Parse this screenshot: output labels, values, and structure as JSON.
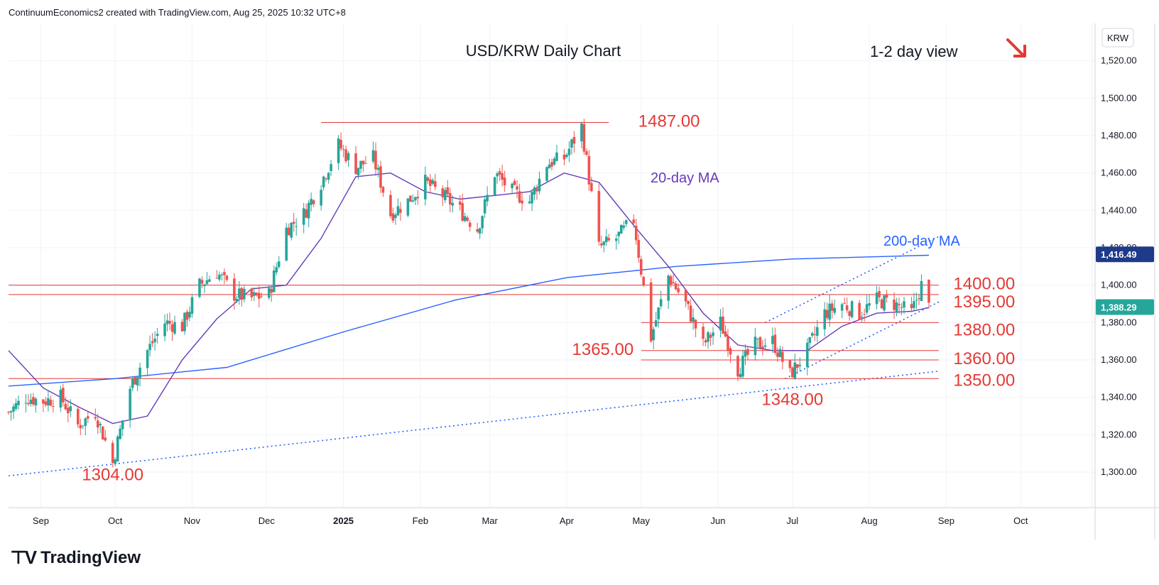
{
  "header": {
    "attribution": "ContinuumEconomics2 created with TradingView.com, Aug 25, 2025 10:32 UTC+8"
  },
  "footer": {
    "brand": "TradingView"
  },
  "colors": {
    "up": "#26a69a",
    "down": "#ef5350",
    "level": "#e53935",
    "ma20": "#673ab7",
    "ma200": "#2962ff",
    "trend": "#2962ff",
    "arrow": "#e53935"
  },
  "chart_data": {
    "type": "candlestick",
    "title": "USD/KRW Daily Chart",
    "subtitle": "1-2 day view",
    "currency": "KRW",
    "x_ticks": [
      "Sep",
      "Oct",
      "Nov",
      "Dec",
      "2025",
      "Feb",
      "Mar",
      "Apr",
      "May",
      "Jun",
      "Jul",
      "Aug",
      "Sep",
      "Oct"
    ],
    "y_ticks": [
      "1,300.00",
      "1,320.00",
      "1,340.00",
      "1,360.00",
      "1,380.00",
      "1,400.00",
      "1,420.00",
      "1,440.00",
      "1,460.00",
      "1,480.00",
      "1,500.00",
      "1,520.00"
    ],
    "ylim": [
      1281,
      1540
    ],
    "last_price": "1,388.29",
    "ma200_label_price": "1,416.49",
    "levels": [
      {
        "label": "1487.00",
        "value": 1487
      },
      {
        "label": "1400.00",
        "value": 1400
      },
      {
        "label": "1395.00",
        "value": 1395
      },
      {
        "label": "1380.00",
        "value": 1380
      },
      {
        "label": "1365.00",
        "value": 1365
      },
      {
        "label": "1360.00",
        "value": 1360
      },
      {
        "label": "1350.00",
        "value": 1350
      },
      {
        "label": "1348.00",
        "value": 1348
      },
      {
        "label": "1304.00",
        "value": 1304
      }
    ],
    "annotations": {
      "ma20": "20-day MA",
      "ma200": "200-day MA"
    },
    "path_points": [
      [
        "2024-08-19",
        1332
      ],
      [
        "2024-08-26",
        1340
      ],
      [
        "2024-09-02",
        1338
      ],
      [
        "2024-09-09",
        1340
      ],
      [
        "2024-09-16",
        1325
      ],
      [
        "2024-09-23",
        1332
      ],
      [
        "2024-09-30",
        1305
      ],
      [
        "2024-10-07",
        1345
      ],
      [
        "2024-10-14",
        1365
      ],
      [
        "2024-10-21",
        1380
      ],
      [
        "2024-10-28",
        1378
      ],
      [
        "2024-11-04",
        1400
      ],
      [
        "2024-11-11",
        1407
      ],
      [
        "2024-11-18",
        1395
      ],
      [
        "2024-11-25",
        1393
      ],
      [
        "2024-12-02",
        1395
      ],
      [
        "2024-12-09",
        1430
      ],
      [
        "2024-12-16",
        1438
      ],
      [
        "2024-12-23",
        1455
      ],
      [
        "2024-12-30",
        1475
      ],
      [
        "2025-01-06",
        1463
      ],
      [
        "2025-01-13",
        1468
      ],
      [
        "2025-01-20",
        1438
      ],
      [
        "2025-01-27",
        1445
      ],
      [
        "2025-02-03",
        1455
      ],
      [
        "2025-02-10",
        1448
      ],
      [
        "2025-02-17",
        1440
      ],
      [
        "2025-02-24",
        1430
      ],
      [
        "2025-03-03",
        1460
      ],
      [
        "2025-03-10",
        1450
      ],
      [
        "2025-03-17",
        1445
      ],
      [
        "2025-03-24",
        1465
      ],
      [
        "2025-03-31",
        1468
      ],
      [
        "2025-04-07",
        1485
      ],
      [
        "2025-04-14",
        1420
      ],
      [
        "2025-04-21",
        1425
      ],
      [
        "2025-04-28",
        1435
      ],
      [
        "2025-05-05",
        1372
      ],
      [
        "2025-05-12",
        1405
      ],
      [
        "2025-05-19",
        1390
      ],
      [
        "2025-05-26",
        1368
      ],
      [
        "2025-06-02",
        1380
      ],
      [
        "2025-06-09",
        1355
      ],
      [
        "2025-06-16",
        1368
      ],
      [
        "2025-06-23",
        1370
      ],
      [
        "2025-06-30",
        1352
      ],
      [
        "2025-07-07",
        1365
      ],
      [
        "2025-07-14",
        1385
      ],
      [
        "2025-07-21",
        1390
      ],
      [
        "2025-07-28",
        1385
      ],
      [
        "2025-08-04",
        1392
      ],
      [
        "2025-08-11",
        1390
      ],
      [
        "2025-08-18",
        1385
      ],
      [
        "2025-08-22",
        1400
      ],
      [
        "2025-08-25",
        1388
      ]
    ],
    "ma20": [
      [
        "2024-08-19",
        1365
      ],
      [
        "2024-09-02",
        1345
      ],
      [
        "2024-09-16",
        1335
      ],
      [
        "2024-09-30",
        1326
      ],
      [
        "2024-10-14",
        1330
      ],
      [
        "2024-10-28",
        1360
      ],
      [
        "2024-11-11",
        1382
      ],
      [
        "2024-11-25",
        1398
      ],
      [
        "2024-12-09",
        1400
      ],
      [
        "2024-12-23",
        1425
      ],
      [
        "2025-01-06",
        1458
      ],
      [
        "2025-01-20",
        1460
      ],
      [
        "2025-02-03",
        1450
      ],
      [
        "2025-02-17",
        1446
      ],
      [
        "2025-03-03",
        1448
      ],
      [
        "2025-03-17",
        1450
      ],
      [
        "2025-03-31",
        1460
      ],
      [
        "2025-04-14",
        1455
      ],
      [
        "2025-04-28",
        1432
      ],
      [
        "2025-05-12",
        1410
      ],
      [
        "2025-05-26",
        1385
      ],
      [
        "2025-06-09",
        1368
      ],
      [
        "2025-06-23",
        1365
      ],
      [
        "2025-07-07",
        1365
      ],
      [
        "2025-07-21",
        1378
      ],
      [
        "2025-08-04",
        1385
      ],
      [
        "2025-08-18",
        1386
      ],
      [
        "2025-08-25",
        1388
      ]
    ],
    "ma200": [
      [
        "2024-08-19",
        1346
      ],
      [
        "2024-10-01",
        1350
      ],
      [
        "2024-11-15",
        1356
      ],
      [
        "2025-01-01",
        1375
      ],
      [
        "2025-02-15",
        1392
      ],
      [
        "2025-04-01",
        1404
      ],
      [
        "2025-05-15",
        1410
      ],
      [
        "2025-07-01",
        1414
      ],
      [
        "2025-08-25",
        1416
      ]
    ],
    "trendlines": [
      {
        "from": [
          "2024-08-19",
          1298
        ],
        "to": [
          "2025-08-29",
          1354
        ]
      },
      {
        "from": [
          "2025-06-28",
          1350
        ],
        "to": [
          "2025-08-29",
          1391
        ]
      },
      {
        "from": [
          "2025-06-20",
          1380
        ],
        "to": [
          "2025-08-29",
          1426
        ]
      }
    ]
  }
}
